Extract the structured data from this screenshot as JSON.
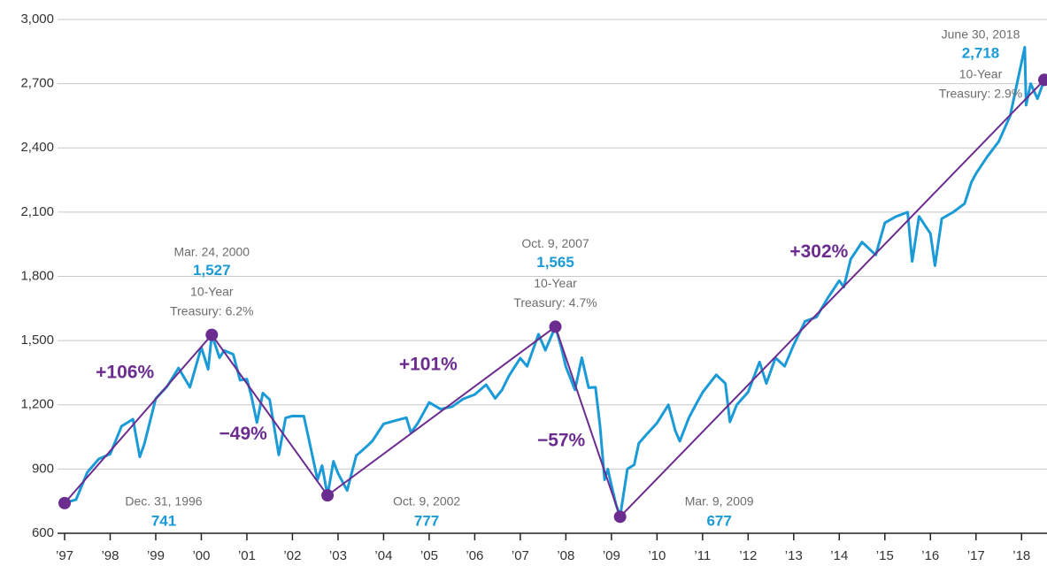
{
  "chart_data": {
    "type": "line",
    "xlim": [
      1997,
      2018.5
    ],
    "ylim": [
      600,
      3000
    ],
    "grid": true,
    "xticks": [
      {
        "value": 1997,
        "label": "’97"
      },
      {
        "value": 1998,
        "label": "’98"
      },
      {
        "value": 1999,
        "label": "’99"
      },
      {
        "value": 2000,
        "label": "’00"
      },
      {
        "value": 2001,
        "label": "’01"
      },
      {
        "value": 2002,
        "label": "’02"
      },
      {
        "value": 2003,
        "label": "’03"
      },
      {
        "value": 2004,
        "label": "’04"
      },
      {
        "value": 2005,
        "label": "’05"
      },
      {
        "value": 2006,
        "label": "’06"
      },
      {
        "value": 2007,
        "label": "’07"
      },
      {
        "value": 2008,
        "label": "’08"
      },
      {
        "value": 2009,
        "label": "’09"
      },
      {
        "value": 2010,
        "label": "’10"
      },
      {
        "value": 2011,
        "label": "’11"
      },
      {
        "value": 2012,
        "label": "’12"
      },
      {
        "value": 2013,
        "label": "’13"
      },
      {
        "value": 2014,
        "label": "’14"
      },
      {
        "value": 2015,
        "label": "’15"
      },
      {
        "value": 2016,
        "label": "’16"
      },
      {
        "value": 2017,
        "label": "’17"
      },
      {
        "value": 2018,
        "label": "’18"
      }
    ],
    "yticks": [
      600,
      900,
      {
        "value": 1200,
        "label": "1,200"
      },
      {
        "value": 1500,
        "label": "1,500"
      },
      {
        "value": 1800,
        "label": "1,800"
      },
      {
        "value": 2100,
        "label": "2,100"
      },
      {
        "value": 2400,
        "label": "2,400"
      },
      {
        "value": 2700,
        "label": "2,700"
      },
      {
        "value": 3000,
        "label": "3,000"
      }
    ],
    "series": [
      {
        "color": "#1a9ad6",
        "x": [
          1997.0,
          1997.25,
          1997.5,
          1997.75,
          1998.0,
          1998.25,
          1998.5,
          1998.65,
          1998.75,
          1999.0,
          1999.25,
          1999.5,
          1999.75,
          2000.0,
          2000.15,
          2000.23,
          2000.4,
          2000.5,
          2000.7,
          2000.85,
          2001.0,
          2001.1,
          2001.22,
          2001.35,
          2001.5,
          2001.7,
          2001.85,
          2002.0,
          2002.25,
          2002.4,
          2002.55,
          2002.65,
          2002.77,
          2002.9,
          2003.0,
          2003.2,
          2003.4,
          2003.6,
          2003.75,
          2004.0,
          2004.25,
          2004.5,
          2004.6,
          2004.75,
          2005.0,
          2005.25,
          2005.5,
          2005.75,
          2006.0,
          2006.25,
          2006.45,
          2006.6,
          2006.75,
          2007.0,
          2007.15,
          2007.4,
          2007.55,
          2007.7,
          2007.77,
          2007.9,
          2008.0,
          2008.2,
          2008.35,
          2008.5,
          2008.65,
          2008.75,
          2008.85,
          2008.92,
          2009.0,
          2009.1,
          2009.19,
          2009.35,
          2009.5,
          2009.6,
          2009.75,
          2010.0,
          2010.25,
          2010.4,
          2010.5,
          2010.7,
          2010.85,
          2011.0,
          2011.3,
          2011.5,
          2011.6,
          2011.75,
          2012.0,
          2012.25,
          2012.4,
          2012.6,
          2012.8,
          2013.0,
          2013.25,
          2013.5,
          2013.75,
          2014.0,
          2014.1,
          2014.25,
          2014.5,
          2014.8,
          2015.0,
          2015.25,
          2015.5,
          2015.6,
          2015.75,
          2016.0,
          2016.1,
          2016.25,
          2016.5,
          2016.75,
          2016.9,
          2017.0,
          2017.25,
          2017.5,
          2017.75,
          2018.0,
          2018.07,
          2018.1,
          2018.2,
          2018.35,
          2018.5
        ],
        "values": [
          741,
          757,
          885,
          947,
          970,
          1100,
          1133,
          957,
          1017,
          1229,
          1286,
          1372,
          1282,
          1469,
          1366,
          1527,
          1420,
          1454,
          1436,
          1315,
          1320,
          1240,
          1117,
          1255,
          1224,
          966,
          1139,
          1148,
          1147,
          1000,
          850,
          916,
          777,
          936,
          880,
          800,
          963,
          1000,
          1030,
          1111,
          1126,
          1140,
          1070,
          1114,
          1211,
          1180,
          1191,
          1228,
          1248,
          1294,
          1230,
          1270,
          1335,
          1418,
          1380,
          1530,
          1455,
          1530,
          1565,
          1468,
          1378,
          1270,
          1420,
          1280,
          1282,
          1100,
          850,
          900,
          825,
          735,
          677,
          900,
          920,
          1020,
          1057,
          1115,
          1200,
          1080,
          1030,
          1140,
          1200,
          1258,
          1340,
          1300,
          1120,
          1200,
          1260,
          1400,
          1300,
          1420,
          1380,
          1480,
          1590,
          1610,
          1700,
          1780,
          1750,
          1880,
          1960,
          1900,
          2050,
          2080,
          2100,
          1870,
          2080,
          2000,
          1850,
          2070,
          2100,
          2140,
          2240,
          2280,
          2360,
          2430,
          2550,
          2800,
          2870,
          2600,
          2700,
          2630,
          2718
        ]
      },
      {
        "color": "#6b2c8f",
        "x": [
          1997.0,
          2000.23,
          2002.77,
          2007.77,
          2009.19,
          2018.5
        ],
        "values": [
          741,
          1527,
          777,
          1565,
          677,
          2718
        ],
        "value_labels": [
          "741",
          "1,527",
          "777",
          "1,565",
          "677",
          "2,718"
        ],
        "dates": [
          "Dec. 31, 1996",
          "Mar. 24, 2000",
          "Oct. 9, 2002",
          "Oct. 9, 2007",
          "Mar. 9, 2009",
          "June 30, 2018"
        ],
        "treasury": [
          null,
          [
            "10-Year",
            "Treasury: 6.2%"
          ],
          null,
          [
            "10-Year",
            "Treasury: 4.7%"
          ],
          null,
          [
            "10-Year",
            "Treasury: 2.9%"
          ]
        ]
      }
    ],
    "changes": {
      "values": [
        106,
        -49,
        101,
        -57,
        302
      ],
      "value_labels": [
        "+106%",
        "−49%",
        "+101%",
        "−57%",
        "+302%"
      ]
    }
  }
}
